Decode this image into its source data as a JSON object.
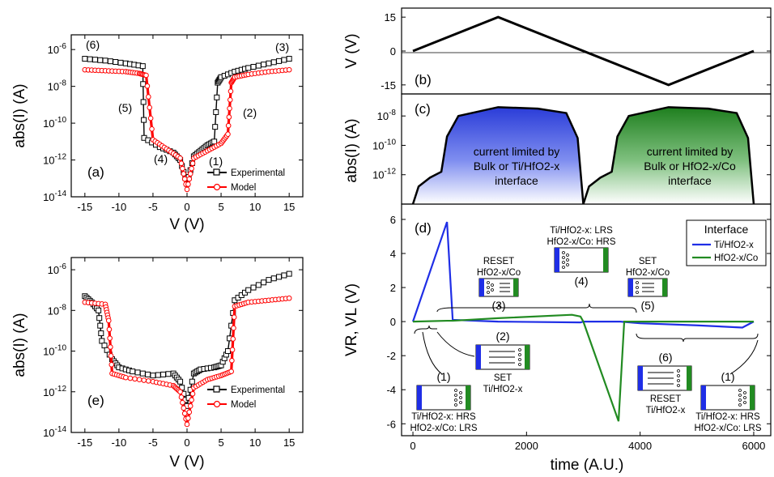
{
  "chart_data": [
    {
      "id": "a",
      "type": "line",
      "panel_label": "(a)",
      "xlabel": "V (V)",
      "ylabel": "abs(I) (A)",
      "xlim": [
        -17,
        17
      ],
      "ylim_log10": [
        -14,
        -5.2
      ],
      "log_y": true,
      "x_ticks": [
        "-15",
        "-10",
        "-5",
        "0",
        "5",
        "10",
        "15"
      ],
      "y_ticks": [
        "10-14",
        "10-12",
        "10-10",
        "10-8",
        "10-6"
      ],
      "legend": [
        "Experimental",
        "Model"
      ],
      "legend_position": "bottom-right",
      "annotations": [
        "(1)",
        "(2)",
        "(3)",
        "(4)",
        "(5)",
        "(6)"
      ],
      "series": [
        {
          "name": "Experimental",
          "color": "#000000",
          "marker": "square",
          "x": [
            -15,
            -12,
            -9,
            -6.5,
            -6.3,
            -4,
            -2,
            -1,
            0,
            1,
            2,
            3,
            4,
            4.5,
            5,
            7,
            9,
            12,
            15
          ],
          "log_y": [
            -6.5,
            -6.6,
            -6.75,
            -6.9,
            -10.8,
            -11.3,
            -11.6,
            -12,
            -13.3,
            -11.8,
            -11.5,
            -11.2,
            -11.0,
            -7.8,
            -7.5,
            -7.2,
            -7.0,
            -6.75,
            -6.5
          ]
        },
        {
          "name": "Model",
          "color": "#ff0000",
          "marker": "circle",
          "x": [
            -15,
            -12,
            -9,
            -7,
            -6,
            -5,
            -3,
            -1,
            0,
            1,
            3,
            5,
            6,
            6.5,
            7,
            9,
            12,
            15
          ],
          "log_y": [
            -7.1,
            -7.15,
            -7.2,
            -7.3,
            -7.4,
            -10.9,
            -11.4,
            -11.9,
            -13.6,
            -11.9,
            -11.5,
            -11.1,
            -10.6,
            -7.8,
            -7.5,
            -7.35,
            -7.2,
            -7.1
          ]
        }
      ]
    },
    {
      "id": "e",
      "type": "line",
      "panel_label": "(e)",
      "xlabel": "V (V)",
      "ylabel": "abs(I) (A)",
      "xlim": [
        -17,
        17
      ],
      "ylim_log10": [
        -14,
        -5.4
      ],
      "log_y": true,
      "x_ticks": [
        "-15",
        "-10",
        "-5",
        "0",
        "5",
        "10",
        "15"
      ],
      "y_ticks": [
        "10-14",
        "10-12",
        "10-10",
        "10-8",
        "10-6"
      ],
      "legend": [
        "Experimental",
        "Model"
      ],
      "legend_position": "bottom-right",
      "series": [
        {
          "name": "Experimental",
          "color": "#000000",
          "marker": "square",
          "x": [
            -15,
            -14,
            -13,
            -12.5,
            -11,
            -10,
            -8,
            -5,
            -2,
            -1,
            0,
            1,
            2,
            4,
            5,
            6,
            7,
            9,
            12,
            15
          ],
          "log_y": [
            -7.3,
            -7.6,
            -8.0,
            -9.5,
            -10.4,
            -10.8,
            -11.0,
            -11.2,
            -11.1,
            -11.5,
            -12.7,
            -11.1,
            -10.9,
            -10.8,
            -10.7,
            -10.0,
            -7.5,
            -7.0,
            -6.5,
            -6.2
          ]
        },
        {
          "name": "Model",
          "color": "#ff0000",
          "marker": "circle",
          "x": [
            -15,
            -12,
            -11.5,
            -11,
            -9,
            -5,
            -2,
            -1,
            0,
            1,
            3,
            5,
            6.5,
            7,
            9,
            12,
            15
          ],
          "log_y": [
            -7.6,
            -7.7,
            -8.5,
            -11.1,
            -11.3,
            -11.5,
            -11.7,
            -12.0,
            -13.6,
            -11.8,
            -11.4,
            -11.2,
            -11.0,
            -7.8,
            -7.6,
            -7.5,
            -7.4
          ]
        }
      ]
    },
    {
      "id": "b",
      "type": "line",
      "panel_label": "(b)",
      "xlabel": "",
      "ylabel": "V (V)",
      "xlim": [
        -200,
        6300
      ],
      "ylim": [
        -19,
        19
      ],
      "y_ticks": [
        "15",
        "0",
        "-15"
      ],
      "series": [
        {
          "color": "#000000",
          "x": [
            0,
            1500,
            4500,
            6000
          ],
          "y": [
            0,
            15,
            -15,
            0
          ]
        }
      ]
    },
    {
      "id": "c",
      "type": "area",
      "panel_label": "(c)",
      "xlabel": "",
      "ylabel": "abs(I) (A)",
      "xlim": [
        -200,
        6300
      ],
      "ylim_log10": [
        -14,
        -6.5
      ],
      "log_y": true,
      "y_ticks": [
        "10-12",
        "10-10",
        "10-8"
      ],
      "annotations": [
        "current limited by",
        "Bulk or Ti/HfO2-x",
        "interface",
        "current limited by",
        "Bulk or HfO2-x/Co",
        "interface"
      ],
      "series": [
        {
          "color": "#2a3cd8",
          "x": [
            0,
            100,
            300,
            500,
            600,
            800,
            1500,
            2200,
            2700,
            2900,
            3000
          ],
          "log_y": [
            -14,
            -12.8,
            -12.2,
            -11.8,
            -9.4,
            -8.0,
            -7.4,
            -7.5,
            -7.8,
            -9.5,
            -14
          ]
        },
        {
          "color": "#2a8a2a",
          "x": [
            3000,
            3100,
            3300,
            3500,
            3600,
            3800,
            4500,
            5200,
            5700,
            5900,
            6000
          ],
          "log_y": [
            -14,
            -12.8,
            -12.2,
            -11.8,
            -9.4,
            -8.0,
            -7.4,
            -7.5,
            -7.8,
            -9.5,
            -14
          ]
        }
      ]
    },
    {
      "id": "d",
      "type": "line",
      "panel_label": "(d)",
      "xlabel": "time (A.U.)",
      "ylabel": "VR, VL (V)",
      "xlim": [
        -200,
        6300
      ],
      "ylim": [
        -6.7,
        6.9
      ],
      "x_ticks": [
        "0",
        "2000",
        "4000",
        "6000"
      ],
      "y_ticks": [
        "6",
        "4",
        "2",
        "0",
        "-2",
        "-4",
        "-6"
      ],
      "legend_title": "Interface",
      "legend": [
        "Ti/HfO2-x",
        "HfO2-x/Co"
      ],
      "legend_position": "top-right",
      "series": [
        {
          "name": "Ti/HfO2-x",
          "color": "#1f2ee6",
          "x": [
            0,
            600,
            700,
            1500,
            2950,
            3000,
            3650,
            4000,
            5000,
            5800,
            6000
          ],
          "y": [
            0,
            5.85,
            0.1,
            0.0,
            -0.05,
            0,
            0,
            -0.1,
            -0.22,
            -0.35,
            0
          ]
        },
        {
          "name": "HfO2-x/Co",
          "color": "#228b22",
          "x": [
            0,
            600,
            700,
            1500,
            2800,
            2950,
            3000,
            3620,
            3720,
            4000,
            6000
          ],
          "y": [
            0,
            0.05,
            0.05,
            0.2,
            0.4,
            0.3,
            0,
            -5.85,
            0.0,
            0,
            0
          ]
        }
      ],
      "annotations": [
        {
          "label": "(1)",
          "text": [
            "Ti/HfO2-x: HRS",
            "HfO2-x/Co: LRS"
          ]
        },
        {
          "label": "(2)",
          "text": [
            "SET",
            "Ti/HfO2-x"
          ]
        },
        {
          "label": "(3)",
          "text": [
            "RESET",
            "HfO2-x/Co"
          ]
        },
        {
          "label": "(4)",
          "text": [
            "Ti/HfO2-x: LRS",
            "HfO2-x/Co: HRS"
          ]
        },
        {
          "label": "(5)",
          "text": [
            "SET",
            "HfO2-x/Co"
          ]
        },
        {
          "label": "(6)",
          "text": [
            "RESET",
            "Ti/HfO2-x"
          ]
        },
        {
          "label": "(1)",
          "text": [
            "Ti/HfO2-x: HRS",
            "HfO2-x/Co: LRS"
          ]
        }
      ]
    }
  ]
}
